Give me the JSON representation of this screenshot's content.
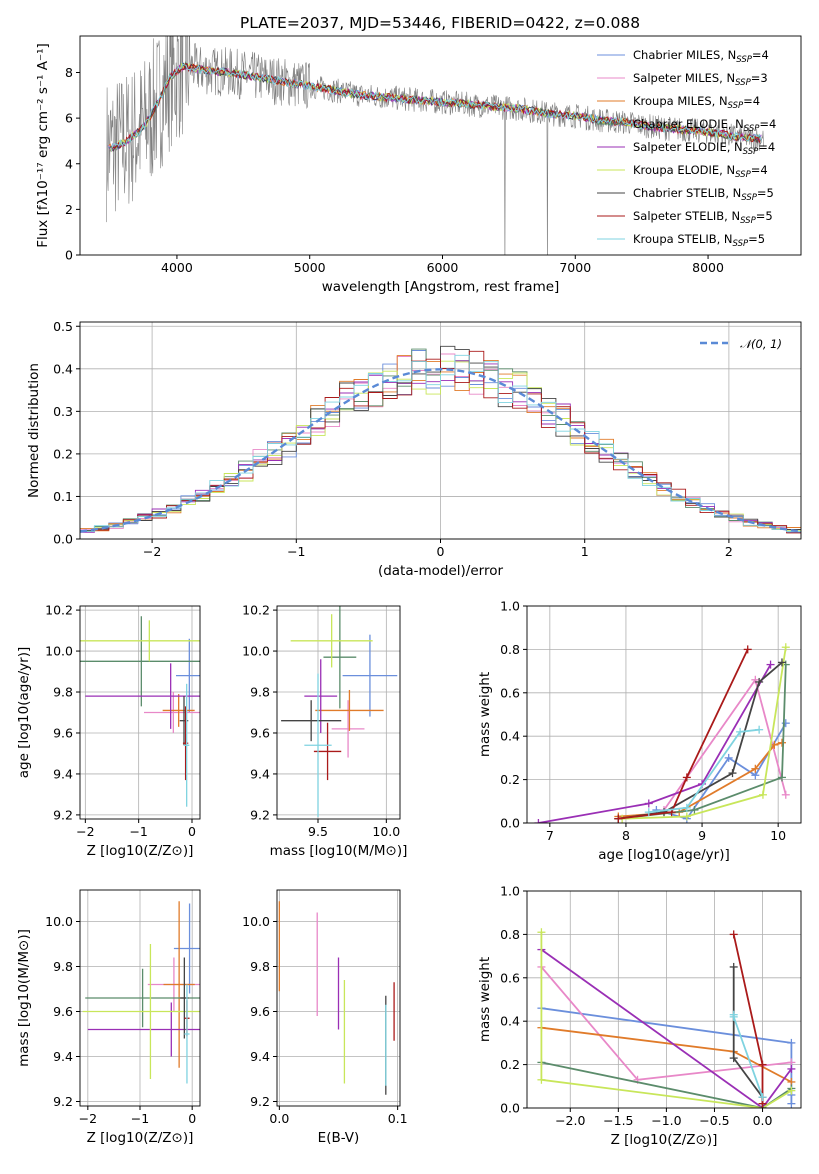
{
  "page": {
    "title": "PLATE=2037, MJD=53446, FIBERID=0422, z=0.088"
  },
  "colors": {
    "Chabrier MILES": "#6b8fdc",
    "Salpeter MILES": "#e888c8",
    "Kroupa MILES": "#e07b2a",
    "Chabrier ELODIE": "#5b8c6b",
    "Salpeter ELODIE": "#9a2fb5",
    "Kroupa ELODIE": "#c8e65a",
    "Chabrier STELIB": "#444444",
    "Salpeter STELIB": "#aa1a1a",
    "Kroupa STELIB": "#7fd3e0",
    "data": "#7f7f7f",
    "normal": "#5a8ad6"
  },
  "chart_data": [
    {
      "type": "line",
      "id": "spectrum",
      "title": "PLATE=2037, MJD=53446, FIBERID=0422, z=0.088",
      "xlabel": "wavelength [Angstrom, rest frame]",
      "ylabel": "Flux [fλ10⁻¹⁷ erg cm⁻² s⁻¹ A⁻¹]",
      "xlim": [
        3270,
        8700
      ],
      "ylim": [
        0,
        9.6
      ],
      "xticks": [
        4000,
        5000,
        6000,
        7000,
        8000
      ],
      "yticks": [
        0,
        2,
        4,
        6,
        8
      ],
      "continuum_model": {
        "x": [
          3450,
          3600,
          3750,
          3850,
          3950,
          4050,
          4200,
          4400,
          4600,
          4800,
          5000,
          5200,
          5400,
          5600,
          5800,
          6000,
          6200,
          6400,
          6600,
          6800,
          7000,
          7200,
          7400,
          7600,
          7800,
          8000,
          8200,
          8400
        ],
        "y": [
          4.6,
          4.9,
          5.6,
          6.6,
          7.8,
          8.3,
          8.1,
          8.0,
          7.8,
          7.6,
          7.4,
          7.2,
          7.0,
          6.9,
          6.8,
          6.7,
          6.6,
          6.5,
          6.4,
          6.2,
          6.1,
          5.9,
          5.8,
          5.6,
          5.5,
          5.4,
          5.2,
          5.1
        ]
      },
      "legend": [
        "Chabrier MILES, N_SSP=4",
        "Salpeter MILES, N_SSP=3",
        "Kroupa MILES, N_SSP=4",
        "Chabrier ELODIE, N_SSP=4",
        "Salpeter ELODIE, N_SSP=4",
        "Kroupa ELODIE, N_SSP=4",
        "Chabrier STELIB, N_SSP=5",
        "Salpeter STELIB, N_SSP=5",
        "Kroupa STELIB, N_SSP=5"
      ],
      "legend_placement": "upper right",
      "grid": false
    },
    {
      "type": "line",
      "id": "residuals",
      "xlabel": "(data-model)/error",
      "ylabel": "Normed distribution",
      "xlim": [
        -2.5,
        2.5
      ],
      "ylim": [
        0,
        0.51
      ],
      "xticks": [
        -2,
        -1,
        0,
        1,
        2
      ],
      "yticks": [
        0.0,
        0.1,
        0.2,
        0.3,
        0.4,
        0.5
      ],
      "step_histograms": "one per model, bin width 0.1, following N(0,1)",
      "legend": [
        "𝒩(0, 1)"
      ],
      "legend_placement": "upper right",
      "grid": true
    },
    {
      "type": "scatter",
      "id": "age_vs_Z",
      "xlabel": "Z [log10(Z/Z⊙)]",
      "ylabel": "age [log10(age/yr)]",
      "xlim": [
        -2.1,
        0.15
      ],
      "ylim": [
        9.18,
        10.22
      ],
      "xticks": [
        -2,
        -1,
        0
      ],
      "yticks": [
        9.2,
        9.4,
        9.6,
        9.8,
        10.0,
        10.2
      ],
      "points": [
        {
          "model": "Chabrier MILES",
          "x": -0.05,
          "y": 9.88,
          "xerr": 0.25,
          "yerr": 0.18
        },
        {
          "model": "Salpeter MILES",
          "x": -0.35,
          "y": 9.7,
          "xerr": 0.55,
          "yerr": 0.1
        },
        {
          "model": "Kroupa MILES",
          "x": -0.25,
          "y": 9.71,
          "xerr": 0.3,
          "yerr": 0.08
        },
        {
          "model": "Chabrier ELODIE",
          "x": -0.95,
          "y": 9.95,
          "xerr": 1.15,
          "yerr": 0.22
        },
        {
          "model": "Salpeter ELODIE",
          "x": -0.4,
          "y": 9.78,
          "xerr": 1.6,
          "yerr": 0.16
        },
        {
          "model": "Kroupa ELODIE",
          "x": -0.8,
          "y": 10.05,
          "xerr": 1.3,
          "yerr": 0.1
        },
        {
          "model": "Chabrier STELIB",
          "x": -0.15,
          "y": 9.66,
          "xerr": 0.08,
          "yerr": 0.12
        },
        {
          "model": "Salpeter STELIB",
          "x": -0.12,
          "y": 9.55,
          "xerr": 0.05,
          "yerr": 0.18
        },
        {
          "model": "Kroupa STELIB",
          "x": -0.1,
          "y": 9.54,
          "xerr": 0.05,
          "yerr": 0.3
        }
      ],
      "grid": true
    },
    {
      "type": "scatter",
      "id": "age_vs_mass",
      "xlabel": "mass [log10(M/M⊙)]",
      "xlim": [
        9.2,
        10.1
      ],
      "ylim": [
        9.18,
        10.22
      ],
      "xticks": [
        9.5,
        10.0
      ],
      "yticks": [
        9.2,
        9.4,
        9.6,
        9.8,
        10.0,
        10.2
      ],
      "points": [
        {
          "model": "Chabrier MILES",
          "x": 9.88,
          "y": 9.88,
          "xerr": 0.2,
          "yerr": 0.2
        },
        {
          "model": "Salpeter MILES",
          "x": 9.72,
          "y": 9.62,
          "xerr": 0.12,
          "yerr": 0.14
        },
        {
          "model": "Kroupa MILES",
          "x": 9.73,
          "y": 9.71,
          "xerr": 0.25,
          "yerr": 0.1
        },
        {
          "model": "Chabrier ELODIE",
          "x": 9.66,
          "y": 9.97,
          "xerr": 0.12,
          "yerr": 0.25
        },
        {
          "model": "Salpeter ELODIE",
          "x": 9.52,
          "y": 9.78,
          "xerr": 0.12,
          "yerr": 0.18
        },
        {
          "model": "Kroupa ELODIE",
          "x": 9.6,
          "y": 10.05,
          "xerr": 0.3,
          "yerr": 0.13
        },
        {
          "model": "Chabrier STELIB",
          "x": 9.45,
          "y": 9.66,
          "xerr": 0.22,
          "yerr": 0.1
        },
        {
          "model": "Salpeter STELIB",
          "x": 9.57,
          "y": 9.51,
          "xerr": 0.1,
          "yerr": 0.14
        },
        {
          "model": "Kroupa STELIB",
          "x": 9.5,
          "y": 9.54,
          "xerr": 0.1,
          "yerr": 0.35
        }
      ],
      "grid": true
    },
    {
      "type": "line",
      "id": "mass_weight_vs_age",
      "xlabel": "age [log10(age/yr)]",
      "ylabel": "mass weight",
      "xlim": [
        6.7,
        10.3
      ],
      "ylim": [
        0,
        1.0
      ],
      "xticks": [
        7,
        8,
        9,
        10
      ],
      "yticks": [
        0.0,
        0.2,
        0.4,
        0.6,
        0.8,
        1.0
      ],
      "series": [
        {
          "name": "Chabrier MILES",
          "x": [
            8.4,
            8.8,
            9.35,
            9.7,
            10.1
          ],
          "y": [
            0.06,
            0.02,
            0.3,
            0.22,
            0.46
          ]
        },
        {
          "name": "Salpeter MILES",
          "x": [
            8.5,
            9.7,
            10.1
          ],
          "y": [
            0.06,
            0.66,
            0.13
          ]
        },
        {
          "name": "Kroupa MILES",
          "x": [
            7.9,
            8.7,
            9.7,
            9.95,
            10.05
          ],
          "y": [
            0.03,
            0.05,
            0.25,
            0.36,
            0.37
          ]
        },
        {
          "name": "Chabrier ELODIE",
          "x": [
            7.9,
            8.9,
            10.05,
            10.1
          ],
          "y": [
            0.02,
            0.06,
            0.21,
            0.73
          ]
        },
        {
          "name": "Salpeter ELODIE",
          "x": [
            6.85,
            8.3,
            9.0,
            9.9
          ],
          "y": [
            0.0,
            0.09,
            0.18,
            0.73
          ]
        },
        {
          "name": "Kroupa ELODIE",
          "x": [
            7.95,
            8.8,
            9.8,
            10.1
          ],
          "y": [
            0.02,
            0.03,
            0.13,
            0.81
          ]
        },
        {
          "name": "Chabrier STELIB",
          "x": [
            7.9,
            8.5,
            9.4,
            9.75,
            10.05
          ],
          "y": [
            0.02,
            0.05,
            0.23,
            0.65,
            0.74
          ]
        },
        {
          "name": "Salpeter STELIB",
          "x": [
            7.9,
            8.6,
            8.8,
            9.6
          ],
          "y": [
            0.02,
            0.05,
            0.21,
            0.8
          ]
        },
        {
          "name": "Kroupa STELIB",
          "x": [
            8.3,
            8.8,
            9.5,
            9.75
          ],
          "y": [
            0.05,
            0.07,
            0.42,
            0.43
          ]
        }
      ],
      "grid": true
    },
    {
      "type": "scatter",
      "id": "mass_vs_Z",
      "xlabel": "Z [log10(Z/Z⊙)]",
      "ylabel": "mass [log10(M/M⊙)]",
      "xlim": [
        -2.15,
        0.15
      ],
      "ylim": [
        9.18,
        10.14
      ],
      "xticks": [
        -2,
        -1,
        0
      ],
      "yticks": [
        9.2,
        9.4,
        9.6,
        9.8,
        10.0
      ],
      "points": [
        {
          "model": "Chabrier MILES",
          "x": -0.05,
          "y": 9.88,
          "xerr": 0.3,
          "yerr": 0.2
        },
        {
          "model": "Salpeter MILES",
          "x": -0.35,
          "y": 9.72,
          "xerr": 0.5,
          "yerr": 0.12
        },
        {
          "model": "Kroupa MILES",
          "x": -0.25,
          "y": 9.72,
          "xerr": 0.3,
          "yerr": 0.37
        },
        {
          "model": "Chabrier ELODIE",
          "x": -0.95,
          "y": 9.66,
          "xerr": 1.1,
          "yerr": 0.13
        },
        {
          "model": "Salpeter ELODIE",
          "x": -0.4,
          "y": 9.52,
          "xerr": 1.6,
          "yerr": 0.12
        },
        {
          "model": "Kroupa ELODIE",
          "x": -0.8,
          "y": 9.6,
          "xerr": 1.3,
          "yerr": 0.3
        },
        {
          "model": "Chabrier STELIB",
          "x": -0.15,
          "y": 9.66,
          "xerr": 0.08,
          "yerr": 0.18
        },
        {
          "model": "Salpeter STELIB",
          "x": -0.1,
          "y": 9.57,
          "xerr": 0.05,
          "yerr": 0.08
        },
        {
          "model": "Kroupa STELIB",
          "x": -0.1,
          "y": 9.5,
          "xerr": 0.05,
          "yerr": 0.22
        }
      ],
      "grid": true
    },
    {
      "type": "scatter",
      "id": "mass_vs_ebv",
      "xlabel": "E(B-V)",
      "xlim": [
        -0.002,
        0.102
      ],
      "ylim": [
        9.18,
        10.14
      ],
      "xticks": [
        0.0,
        0.1
      ],
      "yticks": [
        9.2,
        9.4,
        9.6,
        9.8,
        10.0
      ],
      "points": [
        {
          "model": "Kroupa MILES",
          "x": 0.0,
          "y": 9.89,
          "yerr": 0.2
        },
        {
          "model": "Salpeter MILES",
          "x": 0.032,
          "y": 9.81,
          "yerr": 0.23
        },
        {
          "model": "Salpeter ELODIE",
          "x": 0.05,
          "y": 9.68,
          "yerr": 0.16
        },
        {
          "model": "Kroupa ELODIE",
          "x": 0.055,
          "y": 9.51,
          "yerr": 0.23
        },
        {
          "model": "Chabrier STELIB",
          "x": 0.09,
          "y": 9.45,
          "yerr": 0.22
        },
        {
          "model": "Kroupa STELIB",
          "x": 0.09,
          "y": 9.45,
          "yerr": 0.18
        },
        {
          "model": "Salpeter STELIB",
          "x": 0.097,
          "y": 9.6,
          "yerr": 0.13
        }
      ],
      "grid": true
    },
    {
      "type": "line",
      "id": "mass_weight_vs_Z",
      "xlabel": "Z [log10(Z/Z⊙)]",
      "ylabel": "mass weight",
      "xlim": [
        -2.45,
        0.4
      ],
      "ylim": [
        0,
        1.0
      ],
      "xticks": [
        -2.0,
        -1.5,
        -1.0,
        -0.5,
        0.0
      ],
      "yticks": [
        0.0,
        0.2,
        0.4,
        0.6,
        0.8,
        1.0
      ],
      "series": [
        {
          "name": "Chabrier MILES",
          "x": [
            -2.3,
            0.3,
            0.3,
            0.3
          ],
          "y": [
            0.46,
            0.3,
            0.06,
            0.02
          ]
        },
        {
          "name": "Salpeter MILES",
          "x": [
            -2.3,
            -1.3,
            0.3
          ],
          "y": [
            0.65,
            0.13,
            0.21
          ]
        },
        {
          "name": "Kroupa MILES",
          "x": [
            -2.3,
            -0.3,
            0.3
          ],
          "y": [
            0.37,
            0.26,
            0.12
          ]
        },
        {
          "name": "Chabrier ELODIE",
          "x": [
            -2.3,
            0.0,
            0.3
          ],
          "y": [
            0.21,
            0.0,
            0.09
          ]
        },
        {
          "name": "Salpeter ELODIE",
          "x": [
            -2.3,
            0.0,
            0.3
          ],
          "y": [
            0.73,
            0.0,
            0.18
          ]
        },
        {
          "name": "Kroupa ELODIE",
          "x": [
            -2.3,
            -2.3,
            0.0,
            0.3
          ],
          "y": [
            0.81,
            0.13,
            0.0,
            0.08
          ]
        },
        {
          "name": "Chabrier STELIB",
          "x": [
            -0.3,
            -0.3,
            0.0,
            0.0
          ],
          "y": [
            0.65,
            0.23,
            0.05,
            0.0
          ]
        },
        {
          "name": "Salpeter STELIB",
          "x": [
            -0.3,
            0.0,
            0.0
          ],
          "y": [
            0.8,
            0.2,
            0.02
          ]
        },
        {
          "name": "Kroupa STELIB",
          "x": [
            -0.3,
            -0.3,
            0.0
          ],
          "y": [
            0.43,
            0.42,
            0.05
          ]
        }
      ],
      "grid": true
    }
  ]
}
